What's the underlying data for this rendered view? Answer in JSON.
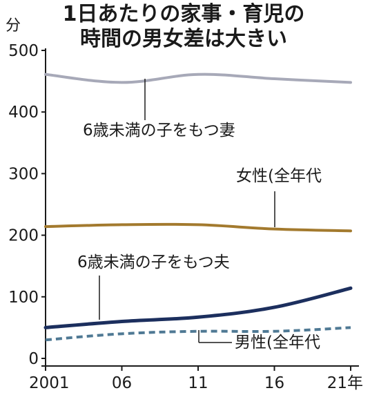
{
  "chart_data": {
    "type": "line",
    "title_lines": [
      "1日あたりの家事・育児の",
      "時間の男女差は大きい"
    ],
    "unit": "分",
    "x": [
      2001,
      2006,
      2011,
      2016,
      2021
    ],
    "x_tick_labels": [
      "2001",
      "06",
      "11",
      "16",
      "21年"
    ],
    "ylim": [
      0,
      500
    ],
    "y_ticks": [
      0,
      100,
      200,
      300,
      400,
      500
    ],
    "grid": false,
    "series": [
      {
        "name": "6歳未満の子をもつ妻",
        "values": [
          461,
          448,
          461,
          454,
          448
        ],
        "color": "#a7a9b8",
        "dashed": false
      },
      {
        "name": "女性(全年代",
        "values": [
          214,
          217,
          217,
          210,
          207
        ],
        "color": "#a37a2e",
        "dashed": false
      },
      {
        "name": "6歳未満の子をもつ夫",
        "values": [
          50,
          60,
          67,
          83,
          114
        ],
        "color": "#1c2f5e",
        "dashed": false
      },
      {
        "name": "男性(全年代",
        "values": [
          30,
          40,
          44,
          44,
          50
        ],
        "color": "#4f7994",
        "dashed": true
      }
    ]
  }
}
